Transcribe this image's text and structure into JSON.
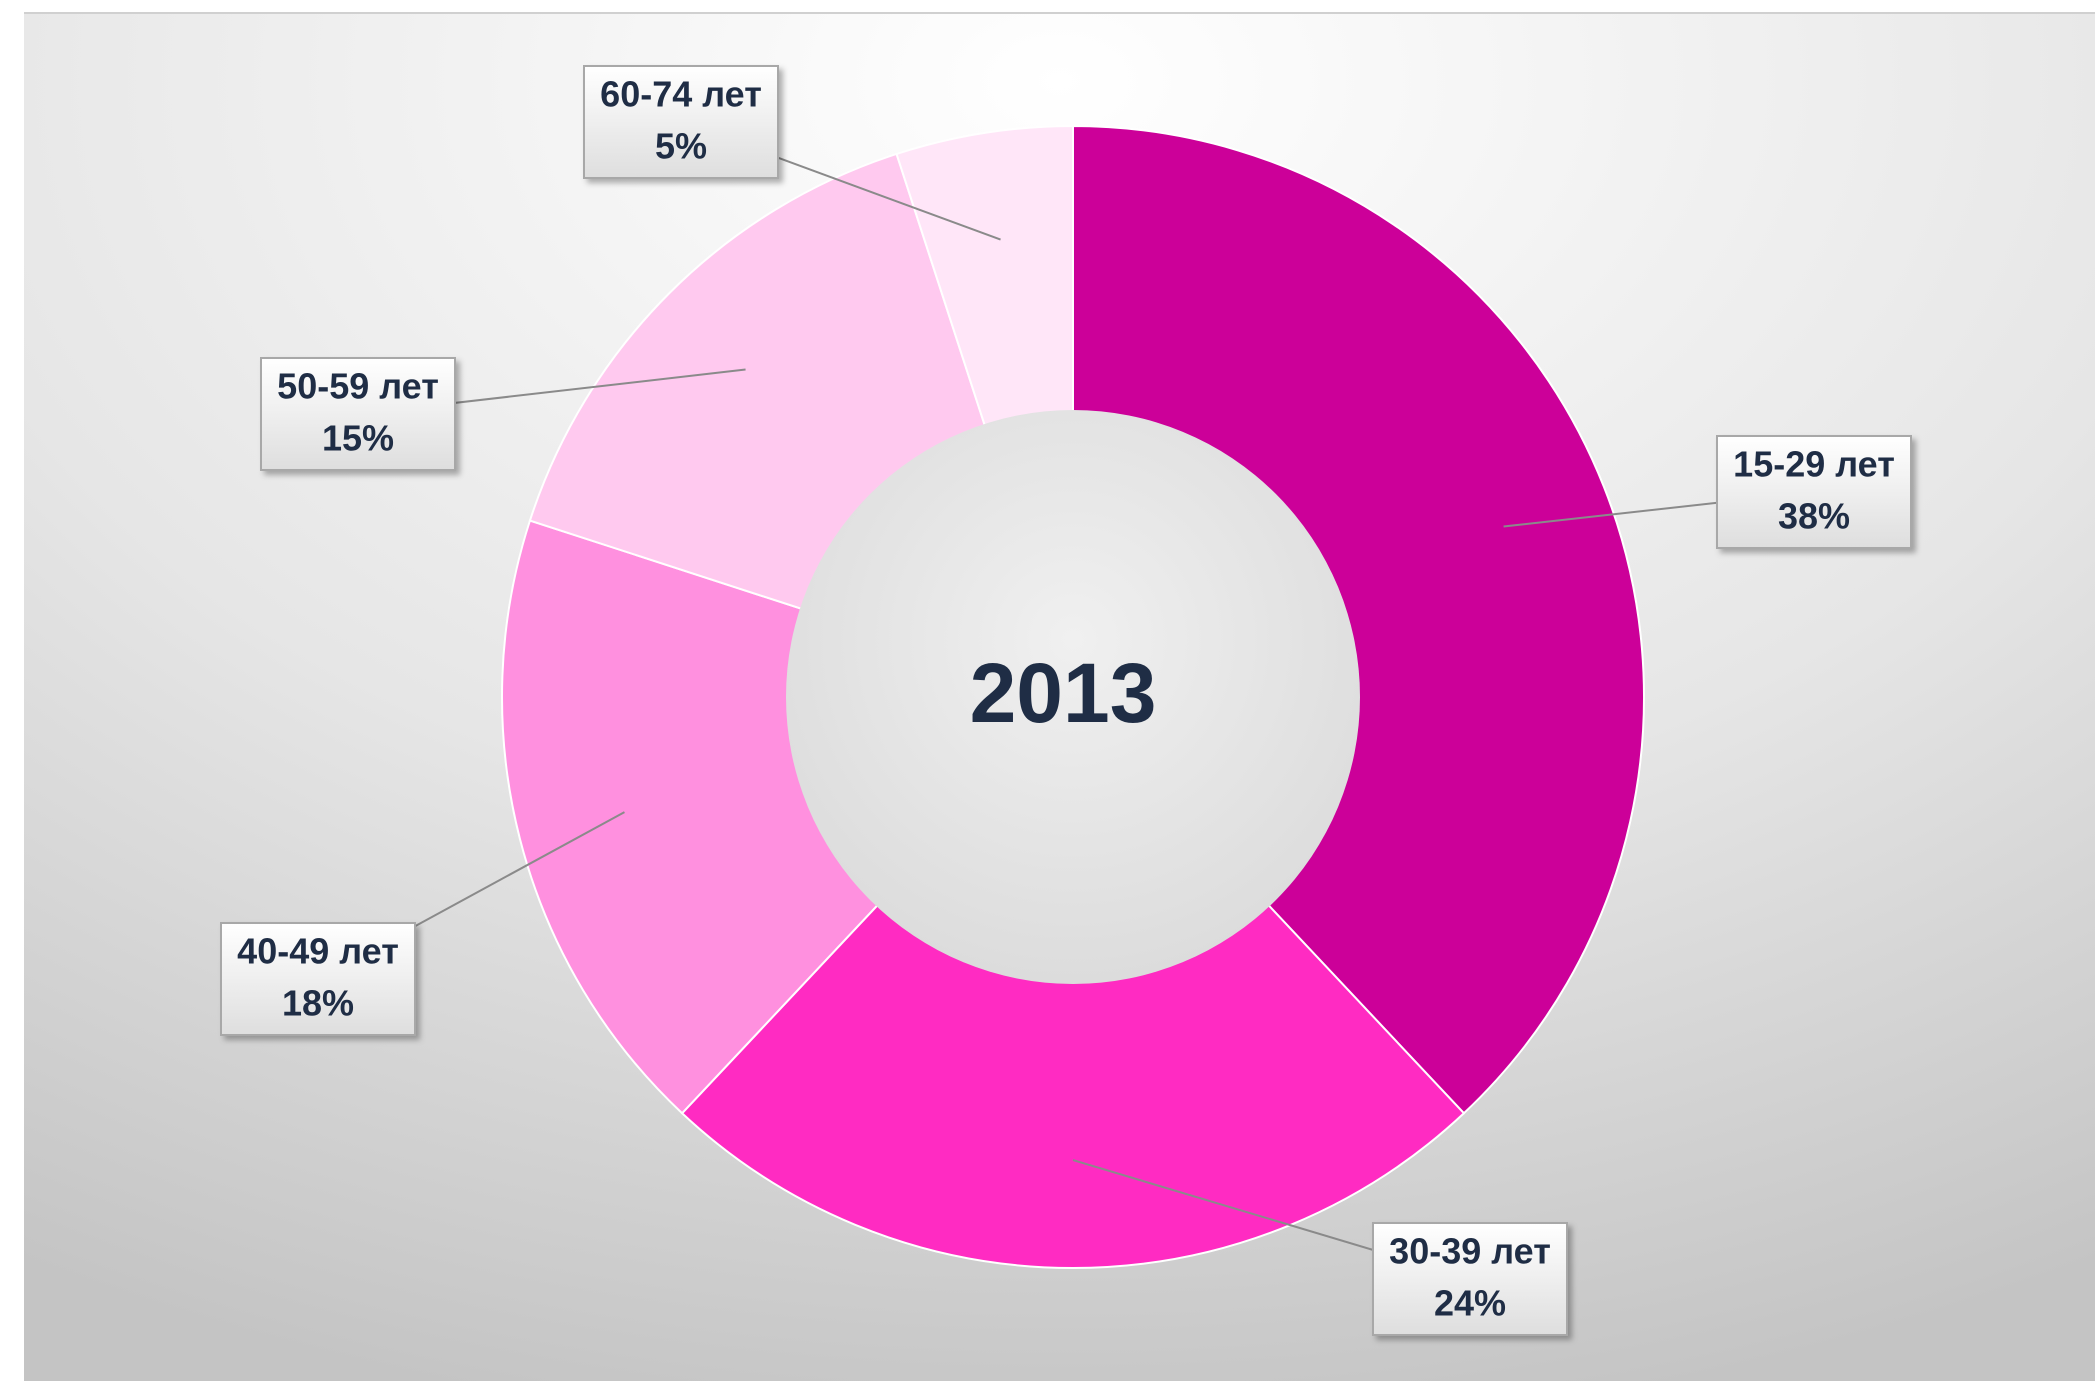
{
  "chart_data": {
    "type": "donut",
    "title": "2013",
    "categories": [
      "15-29 лет",
      "30-39 лет",
      "40-49 лет",
      "50-59 лет",
      "60-74 лет"
    ],
    "values": [
      38,
      24,
      18,
      15,
      5
    ],
    "value_labels": [
      "38%",
      "24%",
      "18%",
      "15%",
      "5%"
    ],
    "colors": [
      "#cc0099",
      "#ff2bc2",
      "#ff90df",
      "#ffc9ef",
      "#ffe6f8"
    ]
  }
}
